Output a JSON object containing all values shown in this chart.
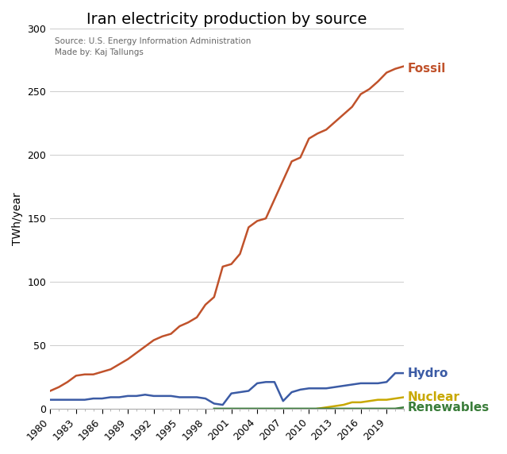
{
  "title": "Iran electricity production by source",
  "subtitle_line1": "Source: U.S. Energy Information Administration",
  "subtitle_line2": "Made by: Kaj Tallungs",
  "ylabel": "TWh/year",
  "xlim": [
    1980,
    2021
  ],
  "ylim": [
    0,
    300
  ],
  "yticks": [
    0,
    50,
    100,
    150,
    200,
    250,
    300
  ],
  "xticks": [
    1980,
    1983,
    1986,
    1989,
    1992,
    1995,
    1998,
    2001,
    2004,
    2007,
    2010,
    2013,
    2016,
    2019
  ],
  "series": {
    "Fossil": {
      "color": "#C0522B",
      "years": [
        1980,
        1981,
        1982,
        1983,
        1984,
        1985,
        1986,
        1987,
        1988,
        1989,
        1990,
        1991,
        1992,
        1993,
        1994,
        1995,
        1996,
        1997,
        1998,
        1999,
        2000,
        2001,
        2002,
        2003,
        2004,
        2005,
        2006,
        2007,
        2008,
        2009,
        2010,
        2011,
        2012,
        2013,
        2014,
        2015,
        2016,
        2017,
        2018,
        2019,
        2020,
        2021
      ],
      "values": [
        14,
        17,
        21,
        26,
        27,
        27,
        29,
        31,
        35,
        39,
        44,
        49,
        54,
        57,
        59,
        65,
        68,
        72,
        82,
        88,
        112,
        114,
        122,
        143,
        148,
        150,
        165,
        180,
        195,
        198,
        213,
        217,
        220,
        226,
        232,
        238,
        248,
        252,
        258,
        265,
        268,
        270
      ]
    },
    "Hydro": {
      "color": "#3B5BA5",
      "years": [
        1980,
        1981,
        1982,
        1983,
        1984,
        1985,
        1986,
        1987,
        1988,
        1989,
        1990,
        1991,
        1992,
        1993,
        1994,
        1995,
        1996,
        1997,
        1998,
        1999,
        2000,
        2001,
        2002,
        2003,
        2004,
        2005,
        2006,
        2007,
        2008,
        2009,
        2010,
        2011,
        2012,
        2013,
        2014,
        2015,
        2016,
        2017,
        2018,
        2019,
        2020,
        2021
      ],
      "values": [
        7,
        7,
        7,
        7,
        7,
        8,
        8,
        9,
        9,
        10,
        10,
        11,
        10,
        10,
        10,
        9,
        9,
        9,
        8,
        4,
        3,
        12,
        13,
        14,
        20,
        21,
        21,
        6,
        13,
        15,
        16,
        16,
        16,
        17,
        18,
        19,
        20,
        20,
        20,
        21,
        28,
        28
      ]
    },
    "Nuclear": {
      "color": "#C8A800",
      "years": [
        2011,
        2012,
        2013,
        2014,
        2015,
        2016,
        2017,
        2018,
        2019,
        2020,
        2021
      ],
      "values": [
        0,
        1,
        2,
        3,
        5,
        5,
        6,
        7,
        7,
        8,
        9
      ]
    },
    "Renewables": {
      "color": "#3A7D3A",
      "years": [
        1999,
        2000,
        2001,
        2002,
        2003,
        2004,
        2005,
        2006,
        2007,
        2008,
        2009,
        2010,
        2011,
        2012,
        2013,
        2014,
        2015,
        2016,
        2017,
        2018,
        2019,
        2020,
        2021
      ],
      "values": [
        0,
        0,
        0,
        0,
        0,
        0,
        0,
        0,
        0,
        0,
        0,
        0,
        0,
        0,
        0,
        0,
        0,
        0,
        0,
        0,
        0,
        0,
        1
      ]
    }
  },
  "labels": {
    "Fossil": {
      "y": 268,
      "color": "#C0522B",
      "fontsize": 11,
      "fontweight": "bold"
    },
    "Hydro": {
      "y": 28,
      "color": "#3B5BA5",
      "fontsize": 11,
      "fontweight": "bold"
    },
    "Nuclear": {
      "y": 9,
      "color": "#C8A800",
      "fontsize": 11,
      "fontweight": "bold"
    },
    "Renewables": {
      "y": 1,
      "color": "#3A7D3A",
      "fontsize": 11,
      "fontweight": "bold"
    }
  },
  "background_color": "#FFFFFF",
  "grid_color": "#CCCCCC",
  "title_fontsize": 14,
  "subtitle_fontsize": 7.5,
  "axis_label_fontsize": 10,
  "tick_fontsize": 9
}
